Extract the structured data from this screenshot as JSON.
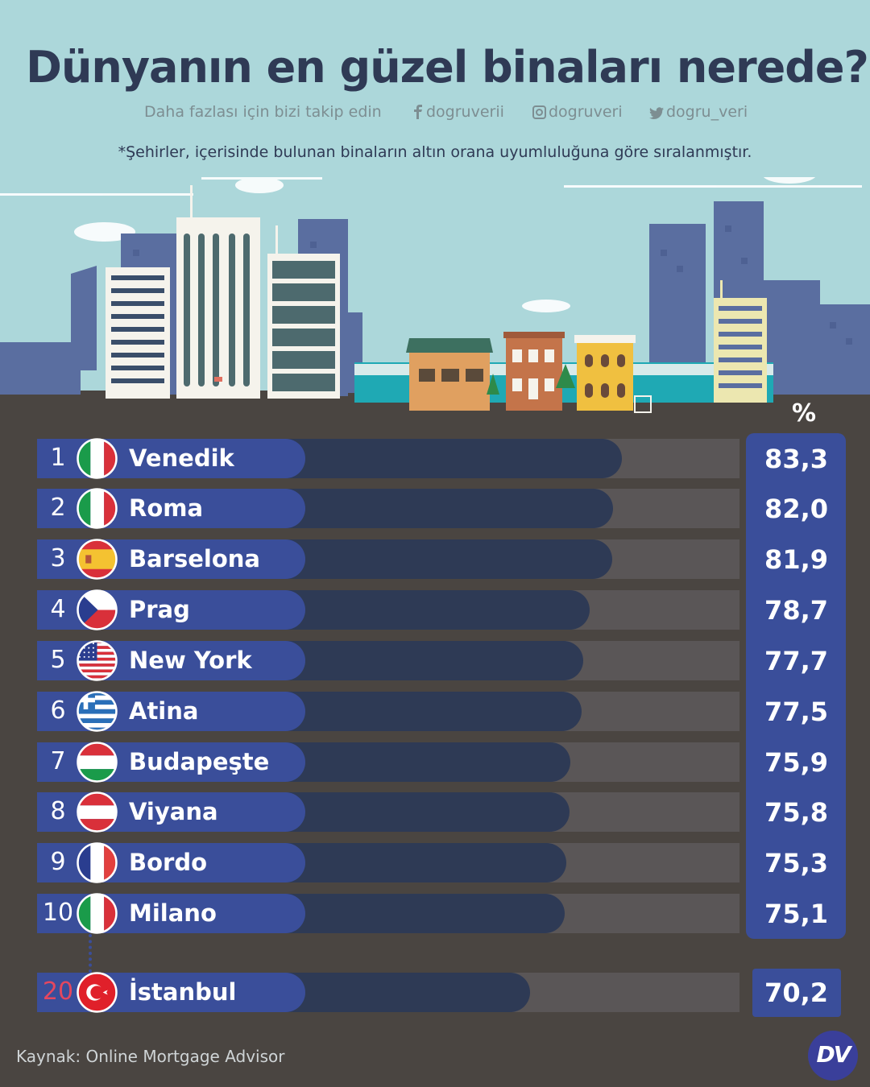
{
  "header": {
    "title": "Dünyanın en güzel binaları nerede?",
    "follow_text": "Daha fazlası için bizi takip edin",
    "facebook": "dogruverii",
    "instagram": "dogruveri",
    "twitter": "dogru_veri",
    "note": "*Şehirler, içerisinde bulunan binaların altın orana uyumluluğuna göre sıralanmıştır."
  },
  "value_header": "%",
  "colors": {
    "sky": "#acd7da",
    "ground": "#4a4541",
    "label_bar": "#3a4e9a",
    "value_bar": "#2e3a55",
    "track": "#5a5657",
    "title": "#2f3a55",
    "istanbul_rank": "#e4475f"
  },
  "chart_data": {
    "type": "bar",
    "orientation": "horizontal",
    "title": "Dünyanın en güzel binaları nerede?",
    "unit": "%",
    "xlim": [
      0,
      100
    ],
    "categories": [
      "Venedik",
      "Roma",
      "Barselona",
      "Prag",
      "New York",
      "Atina",
      "Budapeşte",
      "Viyana",
      "Bordo",
      "Milano",
      "İstanbul"
    ],
    "ranks": [
      "1",
      "2",
      "3",
      "4",
      "5",
      "6",
      "7",
      "8",
      "9",
      "10",
      "20"
    ],
    "flags": [
      "italy-flag",
      "italy-flag",
      "spain-flag",
      "czech-flag",
      "usa-flag",
      "greece-flag",
      "hungary-flag",
      "austria-flag",
      "france-flag",
      "italy-flag",
      "turkey-flag"
    ],
    "values": [
      83.3,
      82.0,
      81.9,
      78.7,
      77.7,
      77.5,
      75.9,
      75.8,
      75.3,
      75.1,
      70.2
    ],
    "value_labels": [
      "83,3",
      "82,0",
      "81,9",
      "78,7",
      "77,7",
      "77,5",
      "75,9",
      "75,8",
      "75,3",
      "75,1",
      "70,2"
    ]
  },
  "footer": {
    "source": "Kaynak: Online Mortgage Advisor",
    "logo_text": "DV"
  }
}
